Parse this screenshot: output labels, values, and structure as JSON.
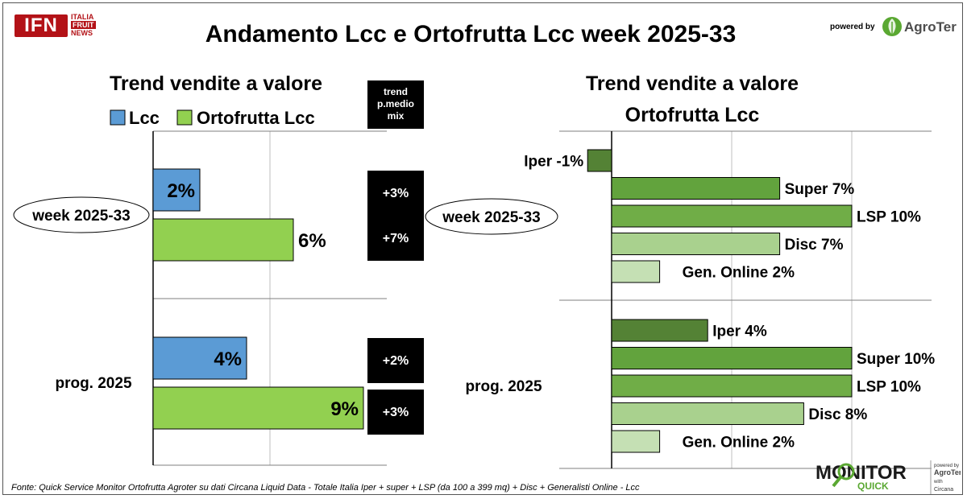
{
  "header": {
    "title": "Andamento Lcc e Ortofrutta Lcc week 2025-33",
    "logo_left": {
      "main": "IFN",
      "line1": "ITALIA",
      "line2": "FRUIT",
      "line3": "NEWS"
    },
    "powered_by": "powered by",
    "logo_right": "AgroTer"
  },
  "footer": {
    "source": "Fonte: Quick Service Monitor Ortofrutta Agroter su dati Circana Liquid Data - Totale Italia Iper + super + LSP (da 100 a 399 mq) + Disc + Generalisti Online - Lcc",
    "monitor_logo": {
      "main": "MONITOR",
      "sub": "QUICK",
      "powered": "powered by",
      "brand": "AgroTer",
      "with": "with",
      "partner": "Circana"
    }
  },
  "colors": {
    "lcc": "#5b9bd5",
    "ortofrutta": "#92d050",
    "iper": "#548235",
    "super": "#62a33d",
    "lsp": "#70ad47",
    "disc": "#a9d18e",
    "online": "#c5e0b4",
    "trend_box": "#000000"
  },
  "chart_data": [
    {
      "type": "bar",
      "orientation": "horizontal",
      "title": "Trend vendite a valore",
      "categories": [
        "week 2025-33",
        "prog. 2025"
      ],
      "series": [
        {
          "name": "Lcc",
          "values": [
            2,
            4
          ],
          "labels": [
            "2%",
            "4%"
          ]
        },
        {
          "name": "Ortofrutta Lcc",
          "values": [
            6,
            9
          ],
          "labels": [
            "6%",
            "9%"
          ]
        }
      ],
      "xlim": [
        0,
        10
      ],
      "grid": true,
      "legend_position": "top",
      "side_table": {
        "header": [
          "trend",
          "p.medio",
          "mix"
        ],
        "values": [
          [
            "+3%",
            "+7%"
          ],
          [
            "+2%",
            "+3%"
          ]
        ]
      }
    },
    {
      "type": "bar",
      "orientation": "horizontal",
      "title": [
        "Trend vendite a valore",
        "Ortofrutta Lcc"
      ],
      "categories": [
        "week 2025-33",
        "prog. 2025"
      ],
      "series": [
        {
          "name": "Iper",
          "values": [
            -1,
            4
          ],
          "labels": [
            "Iper -1%",
            "Iper 4%"
          ]
        },
        {
          "name": "Super",
          "values": [
            7,
            10
          ],
          "labels": [
            "Super 7%",
            "Super 10%"
          ]
        },
        {
          "name": "LSP",
          "values": [
            10,
            10
          ],
          "labels": [
            "LSP 10%",
            "LSP 10%"
          ]
        },
        {
          "name": "Disc",
          "values": [
            7,
            8
          ],
          "labels": [
            "Disc 7%",
            "Disc 8%"
          ]
        },
        {
          "name": "Gen. Online",
          "values": [
            2,
            2
          ],
          "labels": [
            "Gen. Online 2%",
            "Gen. Online 2%"
          ]
        }
      ],
      "xlim": [
        -2,
        12
      ],
      "grid": true
    }
  ]
}
